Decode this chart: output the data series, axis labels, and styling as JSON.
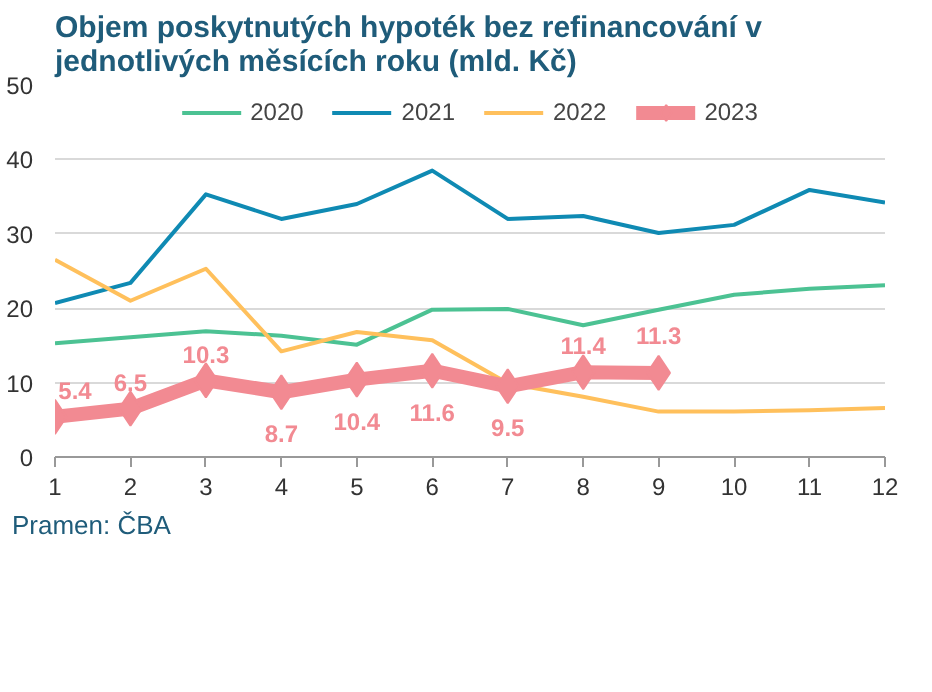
{
  "chart_data": {
    "type": "line",
    "title": "Objem poskytnutých hypoték bez refinancování v jednotlivých měsících roku (mld. Kč)",
    "x": [
      1,
      2,
      3,
      4,
      5,
      6,
      7,
      8,
      9,
      10,
      11,
      12
    ],
    "series": [
      {
        "name": "2020",
        "color": "#4cc293",
        "values": [
          15.3,
          16.1,
          16.9,
          16.3,
          15.1,
          19.8,
          19.9,
          17.7,
          19.8,
          21.8,
          22.6,
          23.1
        ]
      },
      {
        "name": "2021",
        "color": "#0f8ab3",
        "values": [
          20.7,
          23.4,
          35.3,
          32.0,
          34.0,
          38.5,
          32.0,
          32.4,
          30.1,
          31.2,
          35.9,
          34.2
        ]
      },
      {
        "name": "2022",
        "color": "#ffc05c",
        "values": [
          26.5,
          21.0,
          25.3,
          14.2,
          16.8,
          15.7,
          9.9,
          8.1,
          6.1,
          6.1,
          6.3,
          6.6
        ]
      },
      {
        "name": "2023",
        "color": "#f28a92",
        "values": [
          5.4,
          6.5,
          10.3,
          8.7,
          10.4,
          11.6,
          9.5,
          11.4,
          11.3,
          null,
          null,
          null
        ],
        "marker": "diamond",
        "data_labels": true
      }
    ],
    "xlim": [
      1,
      12
    ],
    "xticks": [
      1,
      2,
      3,
      4,
      5,
      6,
      7,
      8,
      9,
      10,
      11,
      12
    ],
    "ylim": [
      0,
      50
    ],
    "yticks": [
      0,
      10,
      20,
      30,
      40,
      50
    ],
    "grid": "y",
    "legend": "top",
    "annotations": [
      "Pramen: ČBA"
    ]
  }
}
